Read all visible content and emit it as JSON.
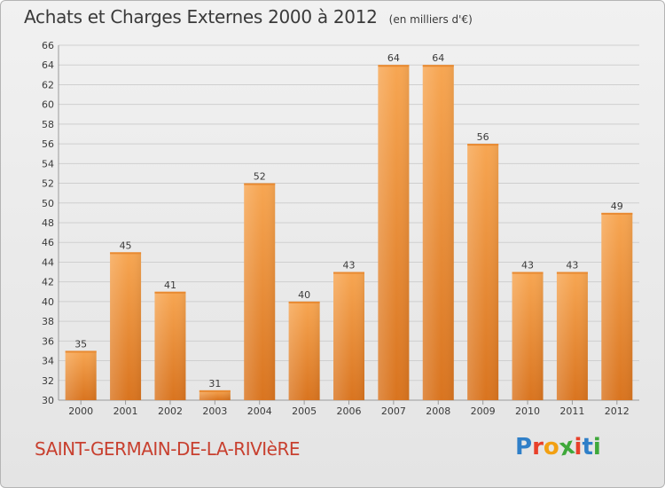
{
  "header": {
    "title": "Achats et Charges Externes 2000 à 2012",
    "subtitle": "(en milliers d'€)"
  },
  "footer": {
    "commune": "SAINT-GERMAIN-DE-LA-RIVIèRE",
    "logo_text": "Proxiti",
    "logo_colors": [
      "#2f7fc8",
      "#e8402a",
      "#f2a012",
      "#3ea83a",
      "#e8402a",
      "#2f7fc8",
      "#3ea83a"
    ]
  },
  "colors": {
    "bar_top": "#f7a652",
    "bar_bottom": "#d9741f",
    "grid": "#cfcfcf",
    "text": "#3a3a3a"
  },
  "chart_data": {
    "type": "bar",
    "categories": [
      "2000",
      "2001",
      "2002",
      "2003",
      "2004",
      "2005",
      "2006",
      "2007",
      "2008",
      "2009",
      "2010",
      "2011",
      "2012"
    ],
    "values": [
      35,
      45,
      41,
      31,
      52,
      40,
      43,
      64,
      64,
      56,
      43,
      43,
      49
    ],
    "ylim": [
      30,
      66
    ],
    "ytick_step": 2,
    "grid": true
  }
}
